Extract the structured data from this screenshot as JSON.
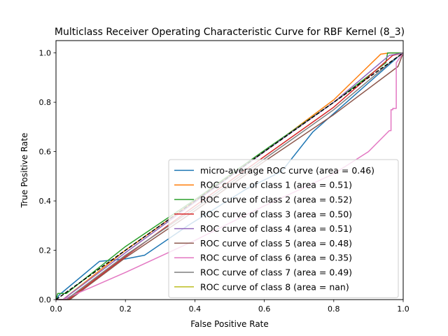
{
  "chart_data": {
    "type": "line",
    "title": "Multiclass Receiver Operating Characteristic Curve for RBF Kernel (8_3)",
    "xlabel": "False Positive Rate",
    "ylabel": "True Positive Rate",
    "xlim": [
      0.0,
      1.0
    ],
    "ylim": [
      0.0,
      1.05
    ],
    "xticks": [
      0.0,
      0.2,
      0.4,
      0.6,
      0.8,
      1.0
    ],
    "yticks": [
      0.0,
      0.2,
      0.4,
      0.6,
      0.8,
      1.0
    ],
    "xtick_labels": [
      "0.0",
      "0.2",
      "0.4",
      "0.6",
      "0.8",
      "1.0"
    ],
    "ytick_labels": [
      "0.0",
      "0.2",
      "0.4",
      "0.6",
      "0.8",
      "1.0"
    ],
    "grid": false,
    "legend_position": "lower right",
    "series": [
      {
        "name": "micro-average ROC curve (area = 0.46)",
        "color": "#1f77b4",
        "x": [
          0.0,
          0.01,
          0.125,
          0.2,
          0.255,
          0.38,
          0.55,
          0.65,
          0.74,
          0.99,
          1.0
        ],
        "y": [
          0.0,
          0.02,
          0.155,
          0.165,
          0.18,
          0.3,
          0.45,
          0.52,
          0.68,
          0.99,
          1.0
        ]
      },
      {
        "name": "ROC curve of class 1 (area = 0.51)",
        "color": "#ff7f0e",
        "x": [
          0.0,
          0.02,
          0.2,
          0.4,
          0.6,
          0.8,
          0.935,
          0.96,
          1.0
        ],
        "y": [
          0.0,
          0.0,
          0.2,
          0.4,
          0.6,
          0.81,
          0.995,
          1.0,
          1.0
        ]
      },
      {
        "name": "ROC curve of class 2 (area = 0.52)",
        "color": "#2ca02c",
        "x": [
          0.0,
          0.005,
          0.03,
          0.2,
          0.4,
          0.6,
          0.8,
          0.95,
          0.955,
          1.0
        ],
        "y": [
          0.0,
          0.025,
          0.025,
          0.215,
          0.405,
          0.605,
          0.8,
          0.96,
          1.0,
          1.0
        ]
      },
      {
        "name": "ROC curve of class 3 (area = 0.50)",
        "color": "#d62728",
        "x": [
          0.0,
          0.035,
          0.2,
          0.4,
          0.6,
          0.8,
          0.97,
          1.0
        ],
        "y": [
          0.0,
          0.0,
          0.175,
          0.38,
          0.58,
          0.78,
          0.99,
          1.0
        ]
      },
      {
        "name": "ROC curve of class 4 (area = 0.51)",
        "color": "#9467bd",
        "x": [
          0.0,
          0.02,
          0.2,
          0.4,
          0.6,
          0.8,
          0.96,
          1.0
        ],
        "y": [
          0.0,
          0.0,
          0.19,
          0.395,
          0.6,
          0.8,
          0.99,
          1.0
        ]
      },
      {
        "name": "ROC curve of class 5 (area = 0.48)",
        "color": "#8c564b",
        "x": [
          0.0,
          0.04,
          0.2,
          0.4,
          0.6,
          0.8,
          0.985,
          1.0
        ],
        "y": [
          0.0,
          0.0,
          0.17,
          0.36,
          0.56,
          0.75,
          0.945,
          1.0
        ]
      },
      {
        "name": "ROC curve of class 6 (area = 0.35)",
        "color": "#e377c2",
        "x": [
          0.0,
          0.02,
          0.2,
          0.4,
          0.6,
          0.8,
          0.9,
          0.96,
          0.965,
          0.965,
          0.97,
          0.97,
          0.98,
          0.98,
          0.99,
          1.0
        ],
        "y": [
          0.0,
          0.0,
          0.11,
          0.24,
          0.38,
          0.51,
          0.6,
          0.685,
          0.685,
          0.77,
          0.77,
          0.775,
          0.775,
          0.96,
          0.98,
          1.0
        ]
      },
      {
        "name": "ROC curve of class 7 (area = 0.49)",
        "color": "#7f7f7f",
        "x": [
          0.0,
          0.03,
          0.2,
          0.4,
          0.6,
          0.8,
          0.97,
          1.0
        ],
        "y": [
          0.0,
          0.0,
          0.18,
          0.37,
          0.57,
          0.77,
          0.97,
          1.0
        ]
      },
      {
        "name": "ROC curve of class 8 (area = nan)",
        "color": "#bcbd22",
        "x": [],
        "y": []
      }
    ],
    "reference_line": {
      "x": [
        0.0,
        1.0
      ],
      "y": [
        0.0,
        1.0
      ],
      "color": "#000000",
      "style": "dashed"
    }
  }
}
